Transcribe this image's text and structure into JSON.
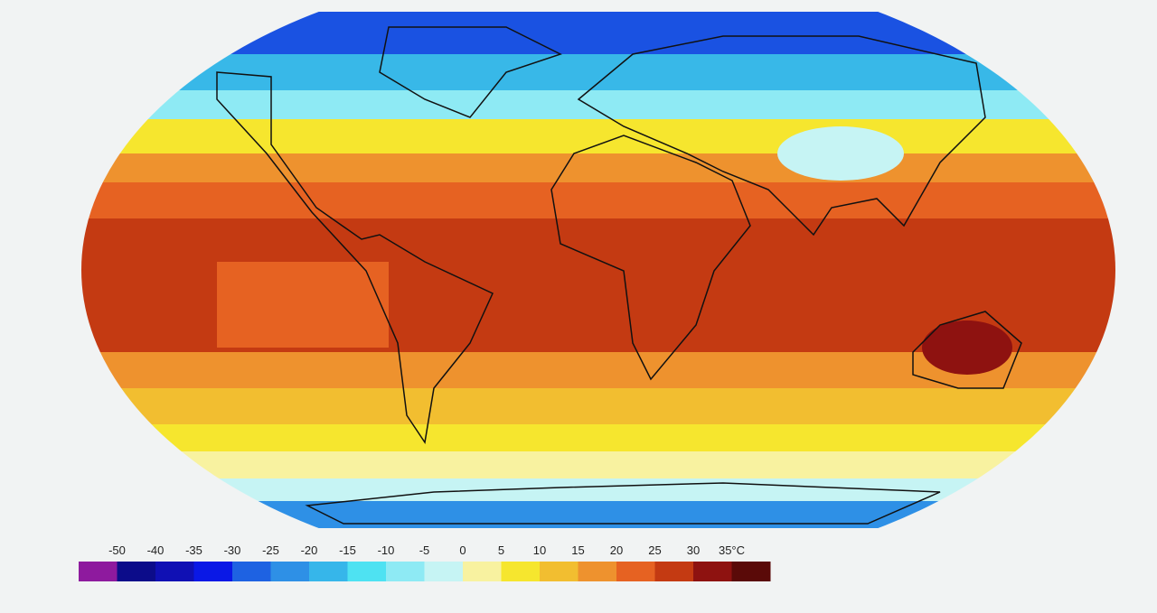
{
  "legend": {
    "labels": [
      "-50",
      "-40",
      "-35",
      "-30",
      "-25",
      "-20",
      "-15",
      "-10",
      "-5",
      "0",
      "5",
      "10",
      "15",
      "20",
      "25",
      "30",
      "35°C"
    ],
    "colors": [
      "#8e1a9e",
      "#0c0c8a",
      "#1010b4",
      "#0a18e6",
      "#1e62e2",
      "#2e90e6",
      "#36b6ea",
      "#4ee2f2",
      "#8eeaf4",
      "#c6f4f4",
      "#f8f2a0",
      "#f6e62e",
      "#f2be30",
      "#ee922e",
      "#e66222",
      "#c43a12",
      "#8e1210",
      "#5a0a08"
    ]
  }
}
